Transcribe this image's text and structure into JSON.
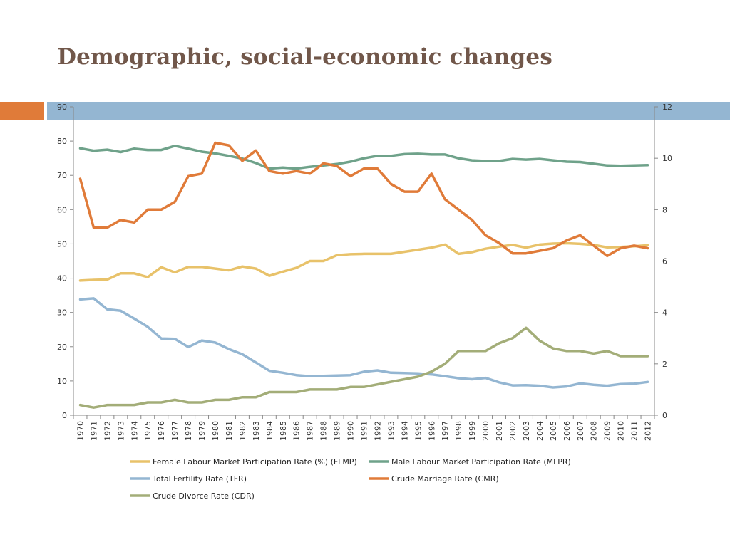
{
  "slide": {
    "title": "Demographic, social-economic changes",
    "accent_orange": "#e07b39",
    "accent_blue": "#94b6d2"
  },
  "chart_data": {
    "type": "line",
    "title": "",
    "x": [
      1970,
      1971,
      1972,
      1973,
      1974,
      1975,
      1976,
      1977,
      1978,
      1979,
      1980,
      1981,
      1982,
      1983,
      1984,
      1985,
      1986,
      1987,
      1988,
      1989,
      1990,
      1991,
      1992,
      1993,
      1994,
      1995,
      1996,
      1997,
      1998,
      1999,
      2000,
      2001,
      2002,
      2003,
      2004,
      2005,
      2006,
      2007,
      2008,
      2009,
      2010,
      2011,
      2012
    ],
    "y_left": {
      "min": 0,
      "max": 90,
      "ticks": [
        0,
        10,
        20,
        30,
        40,
        50,
        60,
        70,
        80,
        90
      ]
    },
    "y_right": {
      "min": 0,
      "max": 12,
      "ticks": [
        0,
        2,
        4,
        6,
        8,
        10,
        12
      ]
    },
    "series": [
      {
        "name": "Female Labour Market Participation Rate (%) (FLMP)",
        "axis": "left",
        "color": "#e8c26a",
        "values": [
          39.3,
          39.5,
          39.6,
          41.4,
          41.4,
          40.3,
          43.2,
          41.7,
          43.3,
          43.3,
          42.8,
          42.3,
          43.4,
          42.8,
          40.7,
          41.9,
          43.0,
          45.0,
          45.0,
          46.7,
          47.0,
          47.1,
          47.1,
          47.1,
          47.7,
          48.3,
          48.9,
          49.8,
          47.1,
          47.6,
          48.6,
          49.2,
          49.7,
          48.9,
          49.8,
          50.1,
          50.2,
          50.0,
          49.7,
          49.0,
          49.1,
          49.3,
          49.6
        ]
      },
      {
        "name": "Male Labour Market Participation Rate (MLPR)",
        "axis": "left",
        "color": "#6fa28a",
        "values": [
          77.9,
          77.2,
          77.5,
          76.8,
          77.8,
          77.4,
          77.4,
          78.6,
          77.8,
          76.9,
          76.4,
          75.7,
          74.9,
          73.6,
          72.0,
          72.3,
          72.0,
          72.5,
          72.9,
          73.3,
          74.0,
          75.0,
          75.7,
          75.7,
          76.2,
          76.3,
          76.1,
          76.1,
          75.0,
          74.4,
          74.2,
          74.2,
          74.8,
          74.6,
          74.8,
          74.4,
          74.0,
          73.9,
          73.4,
          72.9,
          72.8,
          72.9,
          73.0
        ]
      },
      {
        "name": "Total Fertility Rate (TFR)",
        "axis": "left",
        "color": "#94b6d2",
        "values": [
          33.8,
          34.1,
          30.9,
          30.5,
          28.2,
          25.8,
          22.4,
          22.3,
          19.9,
          21.8,
          21.2,
          19.3,
          17.8,
          15.4,
          13.0,
          12.4,
          11.7,
          11.4,
          11.5,
          11.6,
          11.7,
          12.7,
          13.1,
          12.4,
          12.3,
          12.2,
          11.9,
          11.4,
          10.8,
          10.5,
          10.9,
          9.6,
          8.7,
          8.8,
          8.6,
          8.1,
          8.4,
          9.3,
          8.9,
          8.6,
          9.1,
          9.2,
          9.7
        ]
      },
      {
        "name": "Crude Marriage Rate (CMR)",
        "axis": "right",
        "color": "#e07b39",
        "values": [
          9.2,
          7.3,
          7.3,
          7.6,
          7.5,
          8.0,
          8.0,
          8.3,
          9.3,
          9.4,
          10.6,
          10.5,
          9.9,
          10.3,
          9.5,
          9.4,
          9.5,
          9.4,
          9.8,
          9.7,
          9.3,
          9.6,
          9.6,
          9.0,
          8.7,
          8.7,
          9.4,
          8.4,
          8.0,
          7.6,
          7.0,
          6.7,
          6.3,
          6.3,
          6.4,
          6.5,
          6.8,
          7.0,
          6.6,
          6.2,
          6.5,
          6.6,
          6.5
        ]
      },
      {
        "name": "Crude Divorce Rate (CDR)",
        "axis": "right",
        "color": "#a3ad78",
        "values": [
          0.4,
          0.3,
          0.4,
          0.4,
          0.4,
          0.5,
          0.5,
          0.6,
          0.5,
          0.5,
          0.6,
          0.6,
          0.7,
          0.7,
          0.9,
          0.9,
          0.9,
          1.0,
          1.0,
          1.0,
          1.1,
          1.1,
          1.2,
          1.3,
          1.4,
          1.5,
          1.7,
          2.0,
          2.5,
          2.5,
          2.5,
          2.8,
          3.0,
          3.4,
          2.9,
          2.6,
          2.5,
          2.5,
          2.4,
          2.5,
          2.3,
          2.3,
          2.3
        ]
      }
    ],
    "legend": [
      {
        "label": "Female Labour Market Participation Rate (%) (FLMP)",
        "color": "#e8c26a"
      },
      {
        "label": "Male Labour Market Participation Rate (MLPR)",
        "color": "#6fa28a"
      },
      {
        "label": "Total Fertility Rate (TFR)",
        "color": "#94b6d2"
      },
      {
        "label": "Crude Marriage Rate (CMR)",
        "color": "#e07b39"
      },
      {
        "label": "Crude Divorce Rate (CDR)",
        "color": "#a3ad78"
      }
    ]
  }
}
